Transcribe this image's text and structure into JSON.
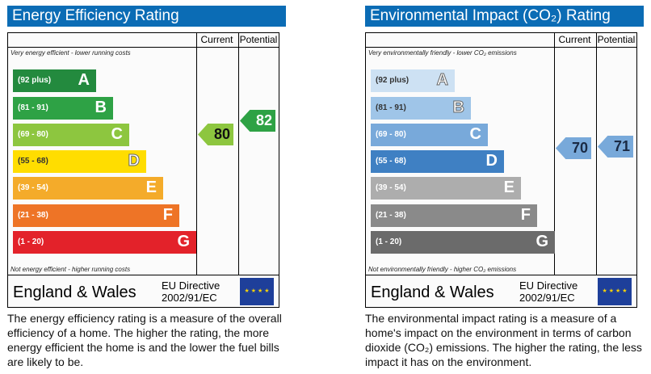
{
  "energy": {
    "title": "Energy Efficiency Rating",
    "current_label": "Current",
    "potential_label": "Potential",
    "top_note": "Very energy efficient - lower running costs",
    "bottom_note": "Not energy efficient - higher running costs",
    "bands": [
      {
        "range": "(92 plus)",
        "letter": "A",
        "color": "#238a3e"
      },
      {
        "range": "(81 - 91)",
        "letter": "B",
        "color": "#2ea245"
      },
      {
        "range": "(69 - 80)",
        "letter": "C",
        "color": "#8dc63f"
      },
      {
        "range": "(55 - 68)",
        "letter": "D",
        "color": "#ffdd00"
      },
      {
        "range": "(39 - 54)",
        "letter": "E",
        "color": "#f4ab2a"
      },
      {
        "range": "(21 - 38)",
        "letter": "F",
        "color": "#ee7426"
      },
      {
        "range": "(1 - 20)",
        "letter": "G",
        "color": "#e3222a"
      }
    ],
    "current": {
      "value": "80",
      "color": "#8dc63f"
    },
    "potential": {
      "value": "82",
      "color": "#2ea245"
    },
    "region": "England & Wales",
    "directive": "EU Directive",
    "directive_code": "2002/91/EC",
    "description": "The energy efficiency rating is a measure of the overall efficiency of a home. The higher the rating, the more energy efficient the home is and the lower the fuel bills are likely to be."
  },
  "environment": {
    "title": "Environmental Impact (CO₂) Rating",
    "current_label": "Current",
    "potential_label": "Potential",
    "top_note": "Very environmentally friendly - lower CO₂ emissions",
    "bottom_note": "Not environmentally friendly - higher CO₂ emissions",
    "bands": [
      {
        "range": "(92 plus)",
        "letter": "A",
        "color": "#cde1f3"
      },
      {
        "range": "(81 - 91)",
        "letter": "B",
        "color": "#9fc5e8"
      },
      {
        "range": "(69 - 80)",
        "letter": "C",
        "color": "#78a9da"
      },
      {
        "range": "(55 - 68)",
        "letter": "D",
        "color": "#3f80c3"
      },
      {
        "range": "(39 - 54)",
        "letter": "E",
        "color": "#adadad"
      },
      {
        "range": "(21 - 38)",
        "letter": "F",
        "color": "#8a8a8a"
      },
      {
        "range": "(1 - 20)",
        "letter": "G",
        "color": "#6b6b6b"
      }
    ],
    "current": {
      "value": "70",
      "color": "#78a9da"
    },
    "potential": {
      "value": "71",
      "color": "#78a9da"
    },
    "region": "England & Wales",
    "directive": "EU Directive",
    "directive_code": "2002/91/EC",
    "description": "The environmental impact rating is a measure of a home's impact on the environment in terms of carbon dioxide (CO₂) emissions. The higher the rating, the less impact it has on the environment."
  }
}
